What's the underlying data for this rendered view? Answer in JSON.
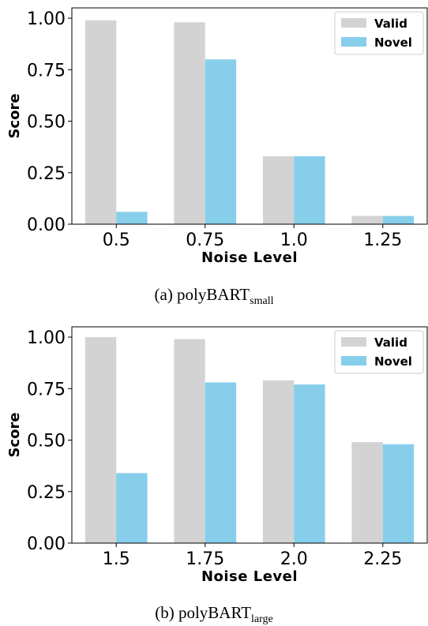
{
  "colors": {
    "valid": "#d3d3d3",
    "novel": "#87ceeb"
  },
  "chart_data": [
    {
      "type": "bar",
      "categories": [
        "0.5",
        "0.75",
        "1.0",
        "1.25"
      ],
      "series": [
        {
          "name": "Valid",
          "values": [
            0.99,
            0.98,
            0.33,
            0.04
          ]
        },
        {
          "name": "Novel",
          "values": [
            0.06,
            0.8,
            0.33,
            0.04
          ]
        }
      ],
      "xlabel": "Noise Level",
      "ylabel": "Score",
      "ylim": [
        0,
        1.05
      ],
      "yticks": [
        "0.00",
        "0.25",
        "0.50",
        "0.75",
        "1.00"
      ],
      "legend": "top-right",
      "grid": false,
      "caption": {
        "prefix": "(a) polyBART",
        "sub": "small"
      }
    },
    {
      "type": "bar",
      "categories": [
        "1.5",
        "1.75",
        "2.0",
        "2.25"
      ],
      "series": [
        {
          "name": "Valid",
          "values": [
            1.0,
            0.99,
            0.79,
            0.49
          ]
        },
        {
          "name": "Novel",
          "values": [
            0.34,
            0.78,
            0.77,
            0.48
          ]
        }
      ],
      "xlabel": "Noise Level",
      "ylabel": "Score",
      "ylim": [
        0,
        1.05
      ],
      "yticks": [
        "0.00",
        "0.25",
        "0.50",
        "0.75",
        "1.00"
      ],
      "legend": "top-right",
      "grid": false,
      "caption": {
        "prefix": "(b) polyBART",
        "sub": "large"
      }
    }
  ]
}
